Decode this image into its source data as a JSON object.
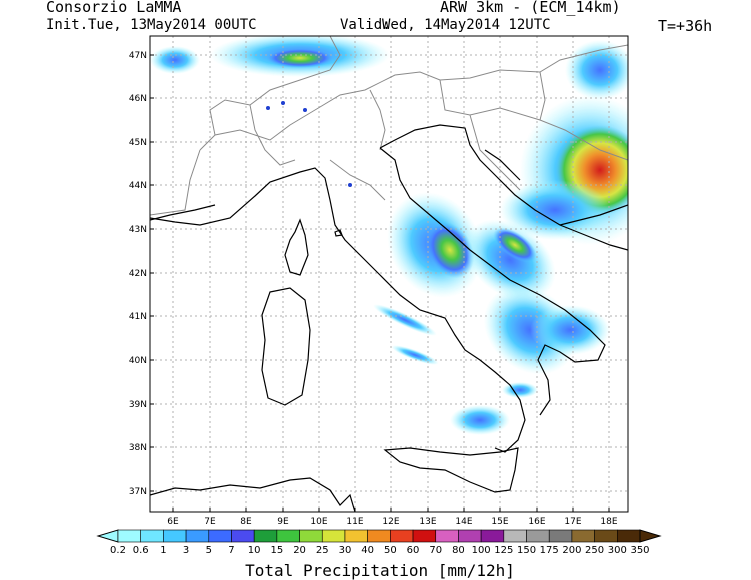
{
  "header": {
    "org": "Consorzio LaMMA",
    "model": "ARW 3km - (ECM_14km)",
    "init_label": "Init.:",
    "init_value": "Tue, 13May2014 00UTC",
    "valid_label": "Valid:",
    "valid_value": "Wed, 14May2014 12UTC",
    "lead": "T=+36h"
  },
  "axes": {
    "lat_labels": [
      "47N",
      "46N",
      "45N",
      "44N",
      "43N",
      "42N",
      "41N",
      "40N",
      "39N",
      "38N",
      "37N"
    ],
    "lon_labels": [
      "6E",
      "7E",
      "8E",
      "9E",
      "10E",
      "11E",
      "12E",
      "13E",
      "14E",
      "15E",
      "16E",
      "17E",
      "18E"
    ]
  },
  "legend": {
    "title": "Total Precipitation [mm/12h]",
    "ticks": [
      "0.2",
      "0.6",
      "1",
      "3",
      "5",
      "7",
      "10",
      "15",
      "20",
      "25",
      "30",
      "40",
      "50",
      "60",
      "70",
      "80",
      "100",
      "125",
      "150",
      "175",
      "200",
      "250",
      "300",
      "350"
    ],
    "colors": [
      "#9ffbff",
      "#6fe6ff",
      "#45c8ff",
      "#3a9bff",
      "#3c6bff",
      "#4b4bf0",
      "#1e9e3a",
      "#3ec43e",
      "#8fd93a",
      "#d6e43a",
      "#f2c230",
      "#f08a20",
      "#e84020",
      "#d01010",
      "#d860c0",
      "#b040b0",
      "#8a1a9a",
      "#b8b8b8",
      "#9a9a9a",
      "#7a7a7a",
      "#8a6a30",
      "#6a4a18",
      "#4a2a08"
    ]
  },
  "colors": {
    "ocean": "#ffffff",
    "coast": "#000000",
    "borders": "#8a8a8a",
    "grid": "#b0b0b0"
  }
}
